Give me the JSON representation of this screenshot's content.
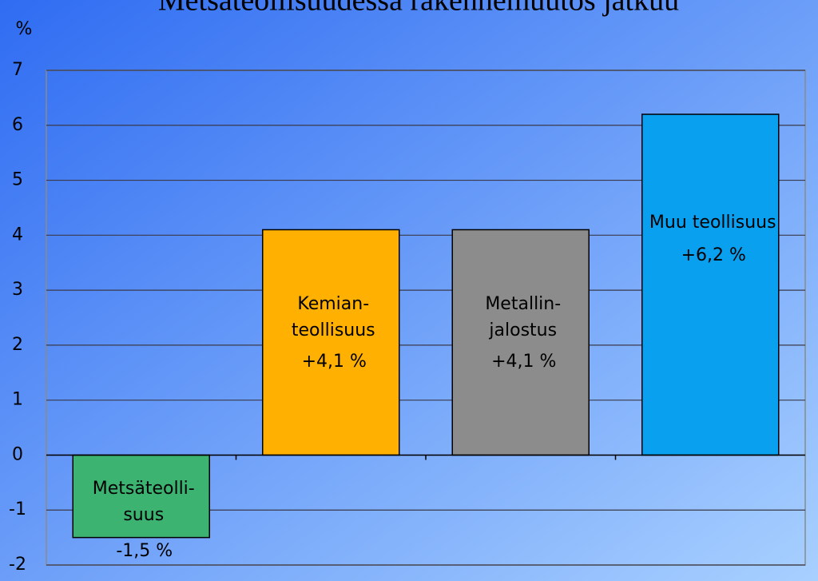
{
  "chart_data": {
    "type": "bar",
    "title": "Metsäteollisuudessa rakennemuutos jatkuu",
    "y_label": "%",
    "categories": [
      [
        "Metsäteolli-",
        "suus"
      ],
      [
        "Kemian-",
        "teollisuus"
      ],
      [
        "Metallin-",
        "jalostus"
      ],
      [
        "Muu teollisuus"
      ]
    ],
    "values": [
      -1.5,
      4.1,
      4.1,
      6.2
    ],
    "value_labels": [
      "-1,5 %",
      "+4,1 %",
      "+4,1 %",
      "+6,2 %"
    ],
    "colors": [
      "#3cb371",
      "#ffb000",
      "#8c8c8c",
      "#0aa0f0"
    ],
    "ylim": [
      -2,
      7
    ],
    "yticks": [
      -2,
      -1,
      0,
      1,
      2,
      3,
      4,
      5,
      6,
      7
    ],
    "grid": true
  }
}
